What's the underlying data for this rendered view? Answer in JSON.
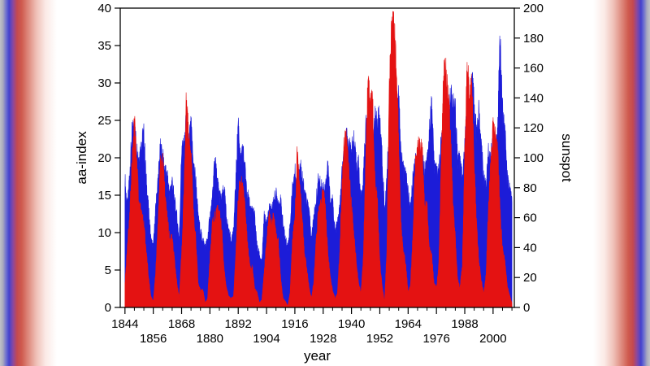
{
  "figure": {
    "xlabel": "year",
    "ylabel_left": "aa-index",
    "ylabel_right": "sunspot",
    "left_axis_color": "#1c1cd8",
    "right_axis_color": "#e41212",
    "axis_line_color": "#000000",
    "plot_background": "#ffffff"
  },
  "chart_data": {
    "type": "area",
    "title": "",
    "xlabel": "year",
    "ylabel_left": "aa-index",
    "ylabel_right": "sunspot",
    "x_start": 1844,
    "x_end": 2008,
    "x_step": 1,
    "x_range": [
      1842,
      2009
    ],
    "left_range": [
      0,
      40
    ],
    "right_range": [
      0,
      200
    ],
    "left_ticks": [
      0,
      5,
      10,
      15,
      20,
      25,
      30,
      35,
      40
    ],
    "right_ticks": [
      0,
      20,
      40,
      60,
      80,
      100,
      120,
      140,
      160,
      180,
      200
    ],
    "x_ticks_major": [
      1844,
      1856,
      1868,
      1880,
      1892,
      1904,
      1916,
      1928,
      1940,
      1952,
      1964,
      1976,
      1988,
      2000
    ],
    "x_minor_step": 4,
    "grid": false,
    "legend": "none",
    "series": [
      {
        "name": "aa-index",
        "axis": "left",
        "color": "#1c1cd8",
        "values": [
          17,
          13,
          18,
          23,
          24,
          21,
          20,
          22,
          23,
          17,
          13,
          9,
          8,
          13,
          17,
          21,
          20,
          18,
          17,
          15,
          17,
          14,
          12,
          9,
          21,
          21,
          25,
          22,
          24,
          19,
          17,
          12,
          10,
          9,
          8,
          9,
          12,
          14,
          20,
          17,
          15,
          14,
          16,
          12,
          10,
          9,
          10,
          17,
          25,
          19,
          21,
          18,
          15,
          13,
          13,
          12,
          8,
          7,
          6,
          12,
          11,
          13,
          13,
          14,
          15,
          14,
          14,
          11,
          9,
          8,
          11,
          16,
          18,
          16,
          19,
          18,
          15,
          14,
          13,
          9,
          12,
          14,
          17,
          16,
          16,
          16,
          19,
          14,
          14,
          10,
          11,
          13,
          18,
          20,
          23,
          21,
          21,
          22,
          19,
          19,
          14,
          17,
          24,
          23,
          21,
          23,
          25,
          25,
          25,
          20,
          13,
          17,
          24,
          26,
          25,
          26,
          28,
          20,
          18,
          18,
          15,
          13,
          17,
          19,
          20,
          19,
          20,
          18,
          20,
          23,
          27,
          19,
          18,
          18,
          22,
          21,
          19,
          26,
          29,
          27,
          26,
          20,
          19,
          17,
          21,
          28,
          25,
          31,
          27,
          23,
          26,
          22,
          17,
          16,
          21,
          20,
          23,
          21,
          24,
          37,
          26,
          24,
          17,
          16,
          14
        ]
      },
      {
        "name": "sunspot",
        "axis": "right",
        "color": "#e41212",
        "values": [
          15,
          40,
          62,
          98,
          124,
          96,
          66,
          64,
          54,
          39,
          21,
          7,
          4,
          23,
          55,
          94,
          96,
          77,
          59,
          44,
          47,
          31,
          16,
          7,
          37,
          74,
          139,
          111,
          102,
          66,
          45,
          17,
          11,
          12,
          3,
          6,
          32,
          54,
          60,
          64,
          64,
          52,
          25,
          13,
          7,
          6,
          7,
          36,
          73,
          85,
          78,
          64,
          42,
          26,
          27,
          12,
          10,
          3,
          5,
          24,
          42,
          64,
          54,
          62,
          49,
          44,
          19,
          6,
          4,
          1,
          10,
          47,
          57,
          104,
          81,
          64,
          38,
          26,
          14,
          6,
          17,
          44,
          64,
          69,
          78,
          65,
          36,
          21,
          11,
          6,
          9,
          36,
          80,
          114,
          110,
          89,
          68,
          48,
          31,
          16,
          10,
          33,
          93,
          152,
          136,
          135,
          84,
          69,
          31,
          14,
          4,
          38,
          142,
          190,
          185,
          159,
          112,
          54,
          38,
          28,
          10,
          15,
          47,
          94,
          106,
          106,
          104,
          67,
          69,
          38,
          34,
          16,
          13,
          28,
          93,
          155,
          155,
          140,
          116,
          67,
          46,
          18,
          13,
          29,
          100,
          158,
          143,
          146,
          94,
          55,
          30,
          18,
          9,
          21,
          64,
          93,
          120,
          111,
          104,
          64,
          40,
          30,
          15,
          8,
          3
        ]
      }
    ]
  }
}
